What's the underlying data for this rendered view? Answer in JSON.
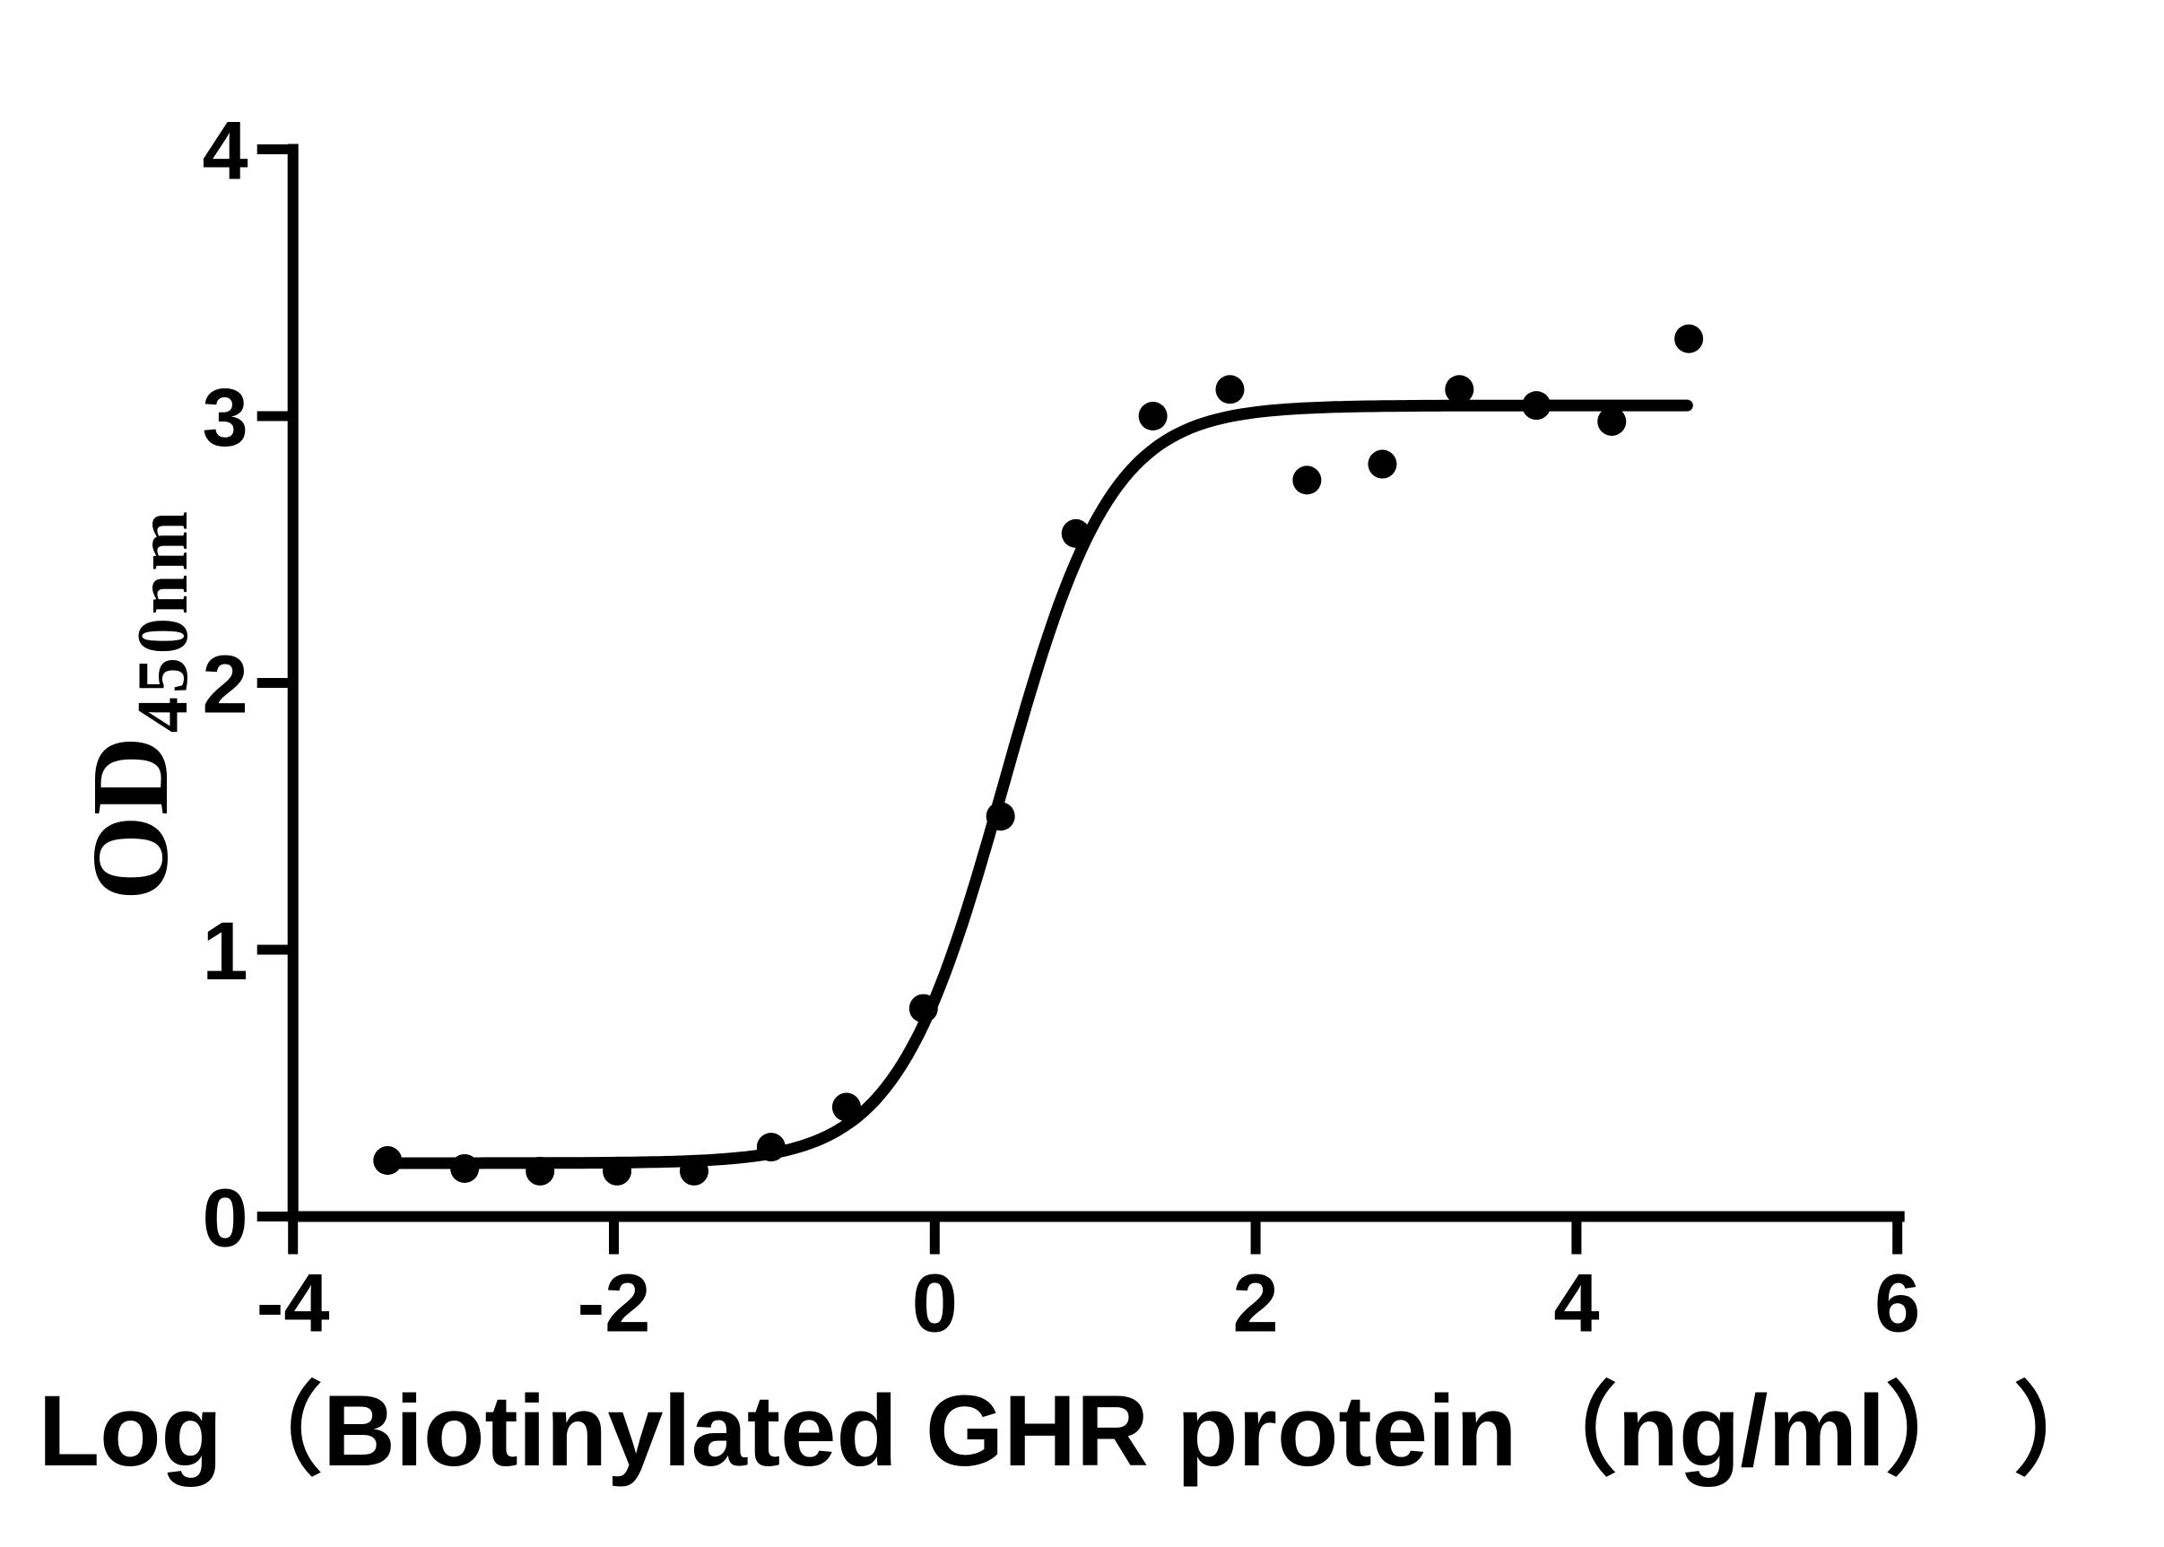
{
  "figure": {
    "background_color": "#ffffff",
    "ink_color": "#000000"
  },
  "chart_data": {
    "type": "scatter",
    "title": "",
    "xlabel": "Log（Biotinylated GHR protein（ng/ml） ）",
    "ylabel": "OD",
    "ylabel_subscript": "450nm",
    "xlim": [
      -4,
      6
    ],
    "ylim": [
      0,
      4
    ],
    "grid": false,
    "legend_position": "none",
    "x_tick_values": [
      -4,
      -2,
      0,
      2,
      4,
      6
    ],
    "x_tick_labels": [
      "-4",
      "-2",
      "0",
      "2",
      "4",
      "6"
    ],
    "y_tick_values": [
      0,
      1,
      2,
      3,
      4
    ],
    "y_tick_labels": [
      "0",
      "1",
      "2",
      "3",
      "4"
    ],
    "point_format": [
      "log10_concentration",
      "od450"
    ],
    "points": [
      [
        -3.41,
        0.21
      ],
      [
        -2.93,
        0.18
      ],
      [
        -2.46,
        0.17
      ],
      [
        -1.98,
        0.17
      ],
      [
        -1.5,
        0.17
      ],
      [
        -1.02,
        0.26
      ],
      [
        -0.55,
        0.41
      ],
      [
        -0.07,
        0.78
      ],
      [
        0.41,
        1.5
      ],
      [
        0.88,
        2.56
      ],
      [
        1.36,
        3.0
      ],
      [
        1.84,
        3.1
      ],
      [
        2.32,
        2.76
      ],
      [
        2.79,
        2.82
      ],
      [
        3.27,
        3.1
      ],
      [
        3.75,
        3.04
      ],
      [
        4.22,
        2.98
      ],
      [
        4.7,
        3.29
      ]
    ],
    "fit_curve": {
      "model": "4PL",
      "bottom": 0.2,
      "top": 3.04,
      "logEC50": 0.43,
      "hill_slope": 1.3,
      "x_start": -3.41,
      "x_end": 4.69
    }
  }
}
